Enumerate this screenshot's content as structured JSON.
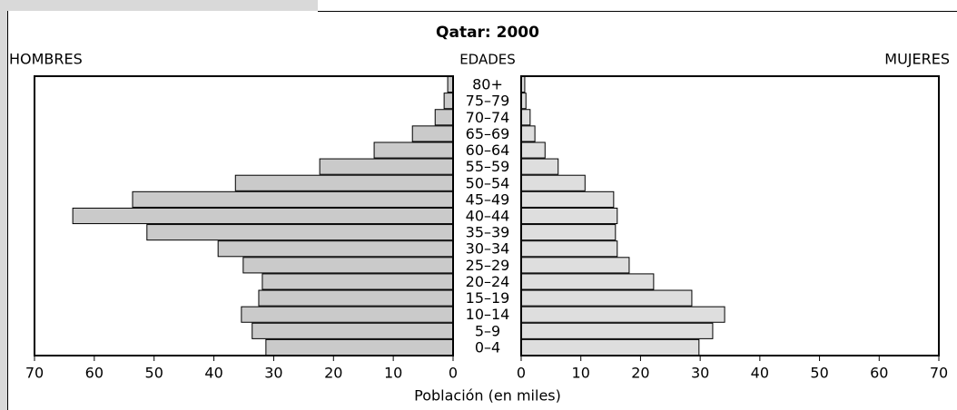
{
  "chart_data": {
    "type": "pyramid",
    "title": "Qatar: 2000",
    "category_label": "EDADES",
    "xlabel": "Población (en miles)",
    "categories": [
      "0–4",
      "5–9",
      "10–14",
      "15–19",
      "20–24",
      "25–29",
      "30–34",
      "35–39",
      "40–44",
      "45–49",
      "50–54",
      "55–59",
      "60–64",
      "65–69",
      "70–74",
      "75–79",
      "80+"
    ],
    "series": [
      {
        "name": "HOMBRES",
        "color": "#cacaca",
        "side": "left",
        "values": [
          31.3,
          33.6,
          35.4,
          32.5,
          31.9,
          35.1,
          39.3,
          51.2,
          63.6,
          53.6,
          36.4,
          22.3,
          13.2,
          6.8,
          3,
          1.5,
          0.9
        ]
      },
      {
        "name": "MUJERES",
        "color": "#dedede",
        "side": "right",
        "values": [
          29.8,
          32.1,
          34.1,
          28.6,
          22.2,
          18.1,
          16.1,
          15.8,
          16.1,
          15.5,
          10.7,
          6.2,
          4,
          2.3,
          1.5,
          0.8,
          0.6
        ]
      }
    ],
    "xlim": [
      0,
      70
    ],
    "xticks": [
      0,
      10,
      20,
      30,
      40,
      50,
      60,
      70
    ]
  }
}
